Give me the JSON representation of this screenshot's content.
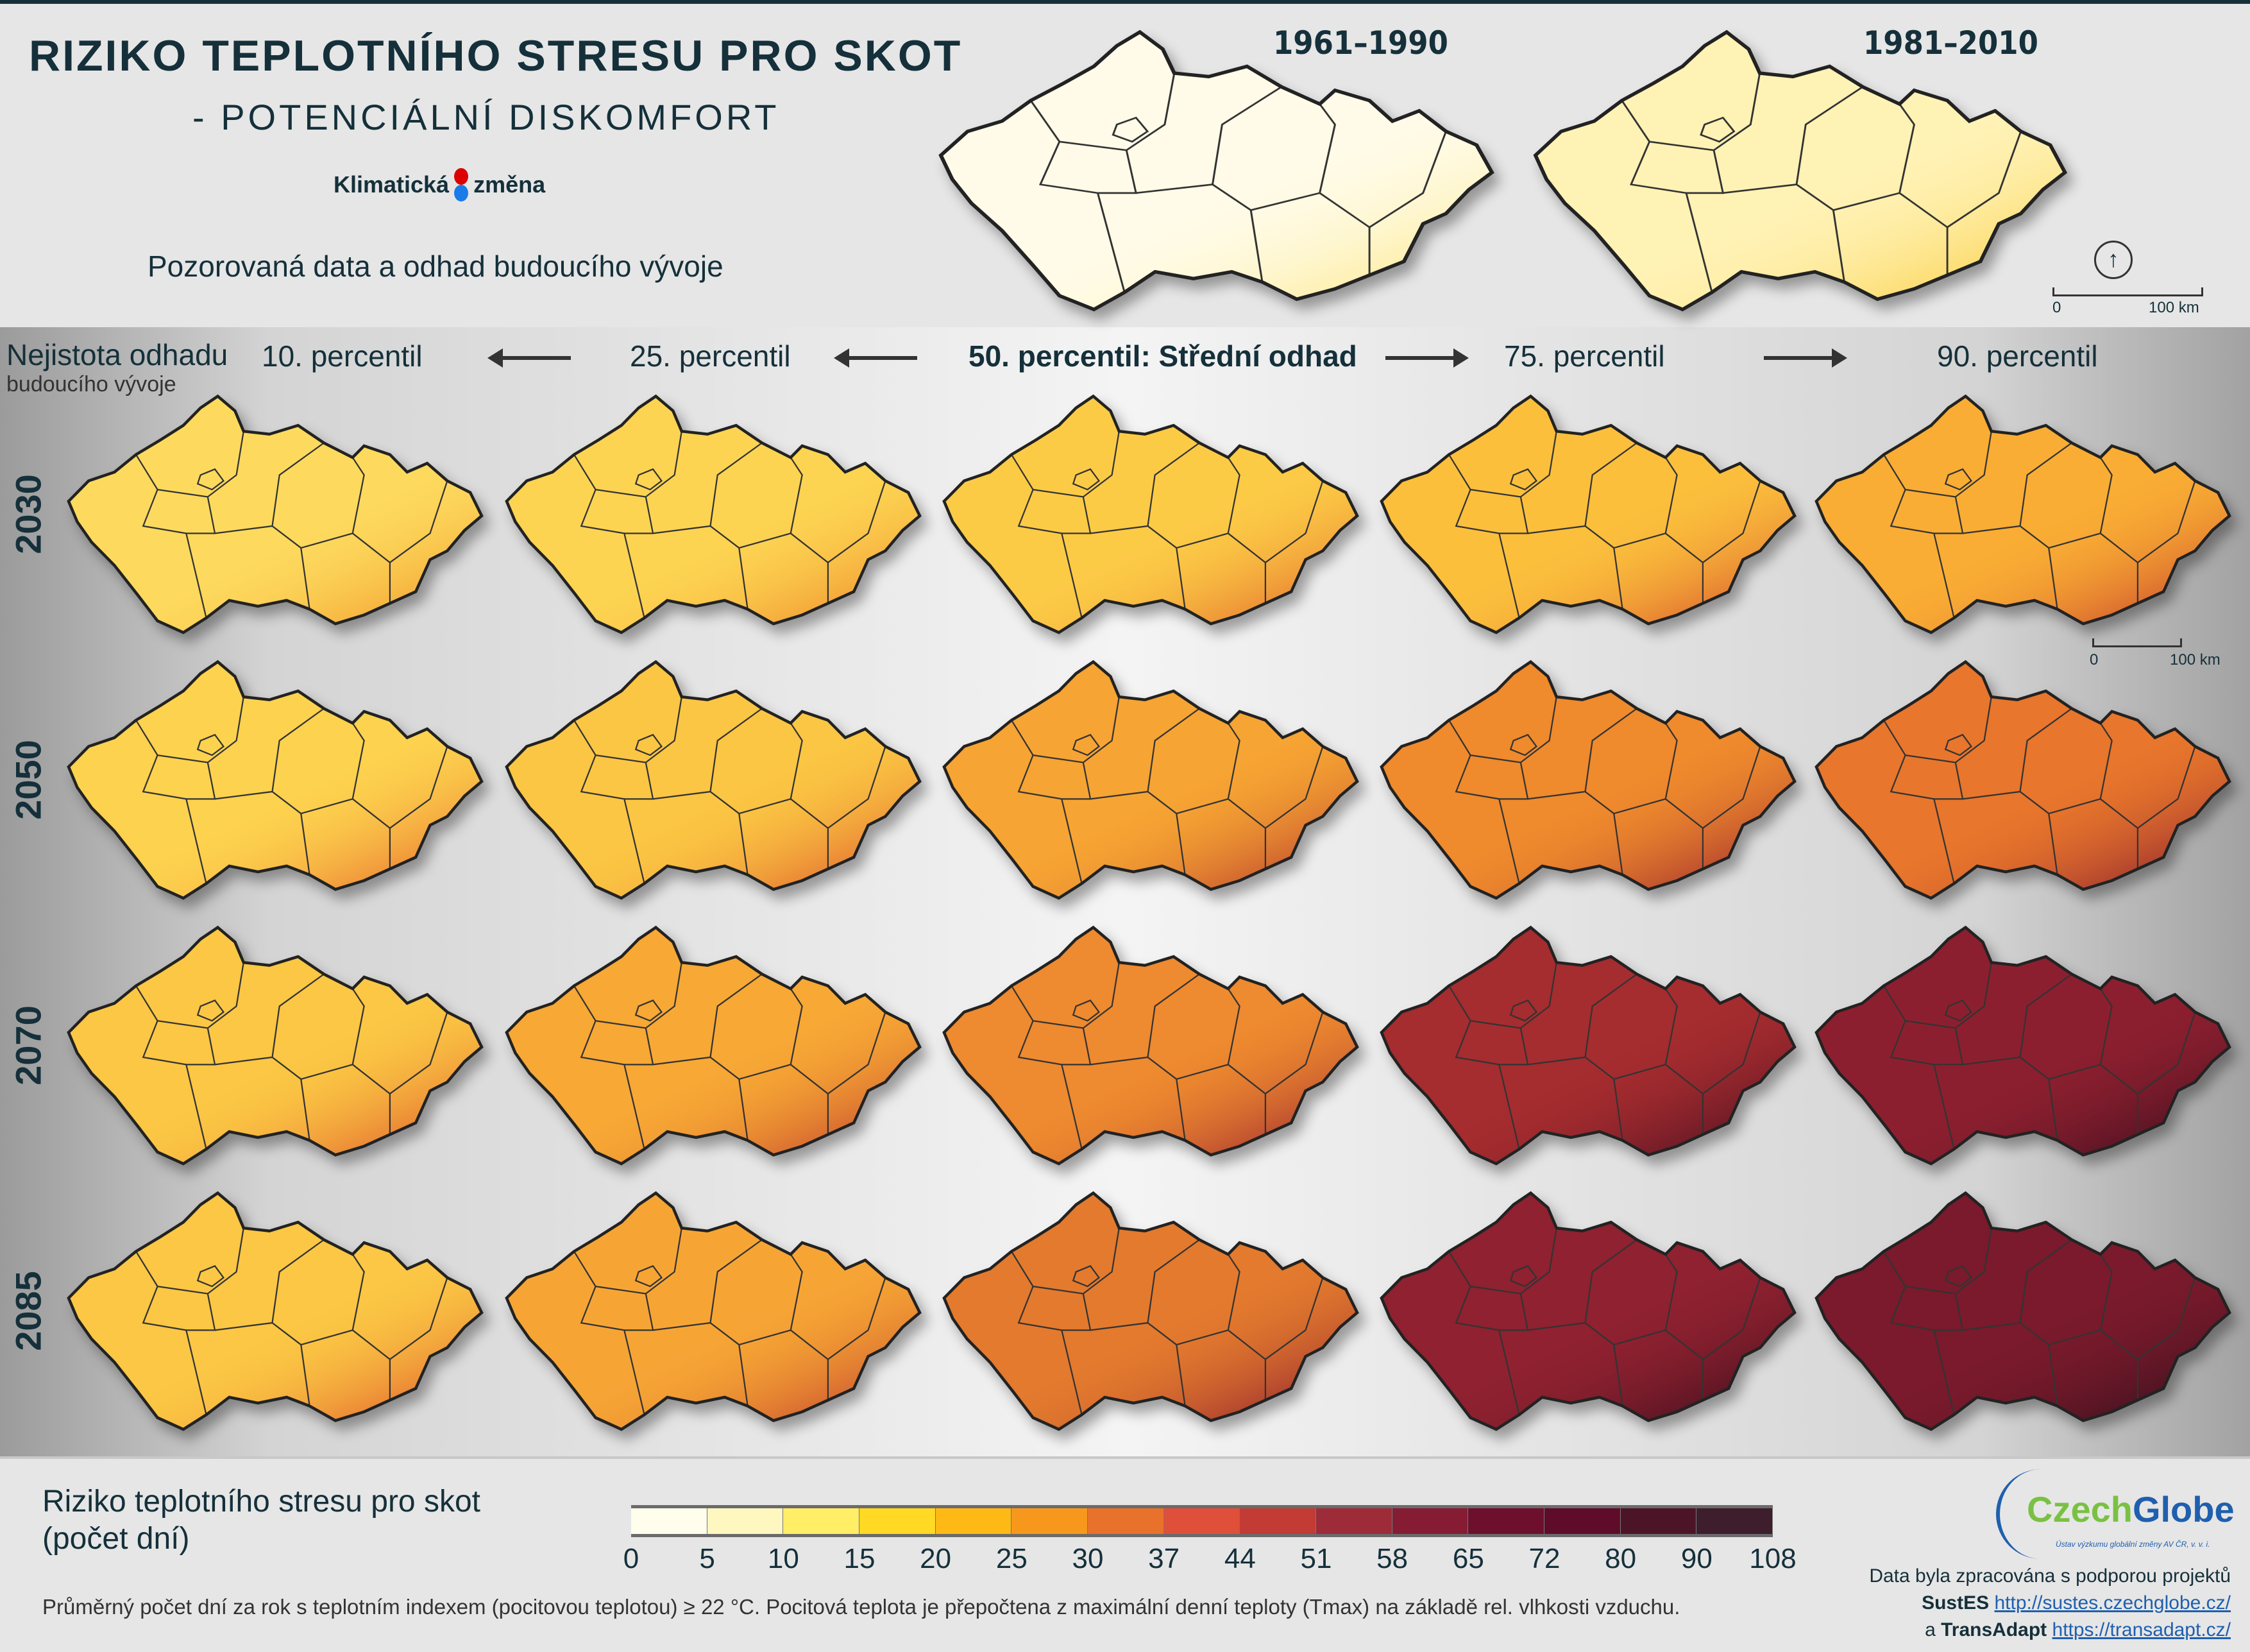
{
  "header": {
    "title": "RIZIKO TEPLOTNÍHO STRESU PRO SKOT",
    "subtitle": "- POTENCIÁLNÍ DISKOMFORT",
    "logo_left": "Klimatická",
    "logo_right": "změna",
    "observed_caption": "Pozorovaná data a odhad budoucího vývoje"
  },
  "observed": [
    {
      "label": "1961–1990",
      "fill": "#fffbe8",
      "hot": "#fde98a"
    },
    {
      "label": "1981–2010",
      "fill": "#fff2b5",
      "hot": "#fbcf45"
    }
  ],
  "scalebar": {
    "zero": "0",
    "distance": "100 km"
  },
  "uncertainty": {
    "title": "Nejistota odhadu",
    "subtitle": "budoucího vývoje"
  },
  "percentiles": [
    "10. percentil",
    "25. percentil",
    "50. percentil: Střední odhad",
    "75. percentil",
    "90. percentil"
  ],
  "rows": [
    {
      "year": "2030",
      "maps": [
        {
          "fill": "#fdda5e",
          "hot": "#f29a2a"
        },
        {
          "fill": "#fdd452",
          "hot": "#ee8a2a"
        },
        {
          "fill": "#fccb46",
          "hot": "#e3682b"
        },
        {
          "fill": "#fbbf3c",
          "hot": "#d8522c"
        },
        {
          "fill": "#f9ad34",
          "hot": "#c8412c"
        }
      ]
    },
    {
      "year": "2050",
      "maps": [
        {
          "fill": "#fdd24e",
          "hot": "#e86a2c"
        },
        {
          "fill": "#fbc643",
          "hot": "#df5a2c"
        },
        {
          "fill": "#f6a433",
          "hot": "#b83a2e"
        },
        {
          "fill": "#ef8a2d",
          "hot": "#9c2530"
        },
        {
          "fill": "#e8762c",
          "hot": "#8a1f30"
        }
      ]
    },
    {
      "year": "2070",
      "maps": [
        {
          "fill": "#fbc744",
          "hot": "#e05a2c"
        },
        {
          "fill": "#f7a835",
          "hot": "#c4432d"
        },
        {
          "fill": "#ee8a2f",
          "hot": "#9e2731"
        },
        {
          "fill": "#a52c2f",
          "hot": "#4d1022"
        },
        {
          "fill": "#8c1f2f",
          "hot": "#3f0f1f"
        }
      ]
    },
    {
      "year": "2085",
      "maps": [
        {
          "fill": "#fbc744",
          "hot": "#e05a2c"
        },
        {
          "fill": "#f6a535",
          "hot": "#c4432d"
        },
        {
          "fill": "#e37a2e",
          "hot": "#8f2030"
        },
        {
          "fill": "#8f2130",
          "hot": "#3d0e1c"
        },
        {
          "fill": "#7a1a2c",
          "hot": "#33101c"
        }
      ]
    }
  ],
  "legend": {
    "title_line1": "Riziko teplotního stresu pro skot",
    "title_line2": "(počet dní)",
    "colors": [
      "#fffdeb",
      "#fef7c0",
      "#ffee66",
      "#ffd924",
      "#ffb914",
      "#f7981c",
      "#e8722c",
      "#df4f3a",
      "#c23b35",
      "#9e2b38",
      "#851c33",
      "#6e0f2d",
      "#5e0c2a",
      "#4c1527",
      "#3e1e2c"
    ],
    "ticks": [
      "0",
      "5",
      "10",
      "15",
      "20",
      "25",
      "30",
      "37",
      "44",
      "51",
      "58",
      "65",
      "72",
      "80",
      "90",
      "108"
    ],
    "footnote": "Průměrný počet dní za rok s teplotním indexem (pocitovou teplotou) ≥ 22 °C. Pocitová teplota je přepočtena z maximální denní teploty (Tmax) na základě rel. vlhkosti vzduchu."
  },
  "branding": {
    "czech": "Czech",
    "globe": "Globe",
    "tagline": "Ústav výzkumu globální změny AV ČR, v. v. i.",
    "credit_line": "Data byla zpracována s podporou projektů",
    "project1": "SustES",
    "link1": "http://sustes.czechglobe.cz/",
    "and": "a",
    "project2": "TransAdapt",
    "link2": "https://transadapt.cz/"
  }
}
